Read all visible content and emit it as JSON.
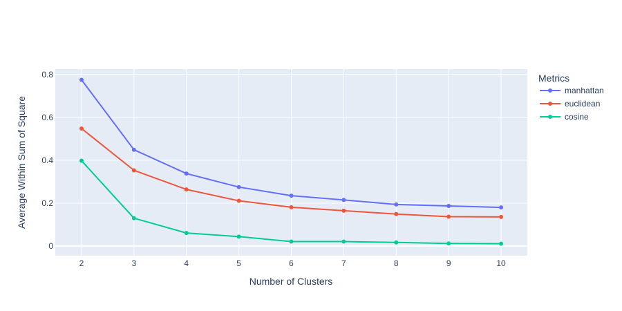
{
  "chart_data": {
    "type": "line",
    "title": "",
    "xlabel": "Number of Clusters",
    "ylabel": "Average Within Sum of Square",
    "x": [
      2,
      3,
      4,
      5,
      6,
      7,
      8,
      9,
      10
    ],
    "xlim": [
      1.5,
      10.5
    ],
    "ylim": [
      -0.045,
      0.825
    ],
    "yticks": [
      0,
      0.2,
      0.4,
      0.6,
      0.8
    ],
    "ytick_labels": [
      "0",
      "0.2",
      "0.4",
      "0.6",
      "0.8"
    ],
    "xtick_labels": [
      "2",
      "3",
      "4",
      "5",
      "6",
      "7",
      "8",
      "9",
      "10"
    ],
    "grid": true,
    "legend_title": "Metrics",
    "legend_position": "top-right",
    "series": [
      {
        "name": "manhattan",
        "color": "#636efa",
        "values": [
          0.775,
          0.449,
          0.338,
          0.275,
          0.235,
          0.215,
          0.194,
          0.187,
          0.18
        ]
      },
      {
        "name": "euclidean",
        "color": "#ef553b",
        "values": [
          0.548,
          0.353,
          0.264,
          0.211,
          0.181,
          0.165,
          0.149,
          0.137,
          0.136
        ]
      },
      {
        "name": "cosine",
        "color": "#00cc96",
        "values": [
          0.398,
          0.13,
          0.061,
          0.044,
          0.021,
          0.021,
          0.017,
          0.012,
          0.011
        ]
      }
    ]
  }
}
